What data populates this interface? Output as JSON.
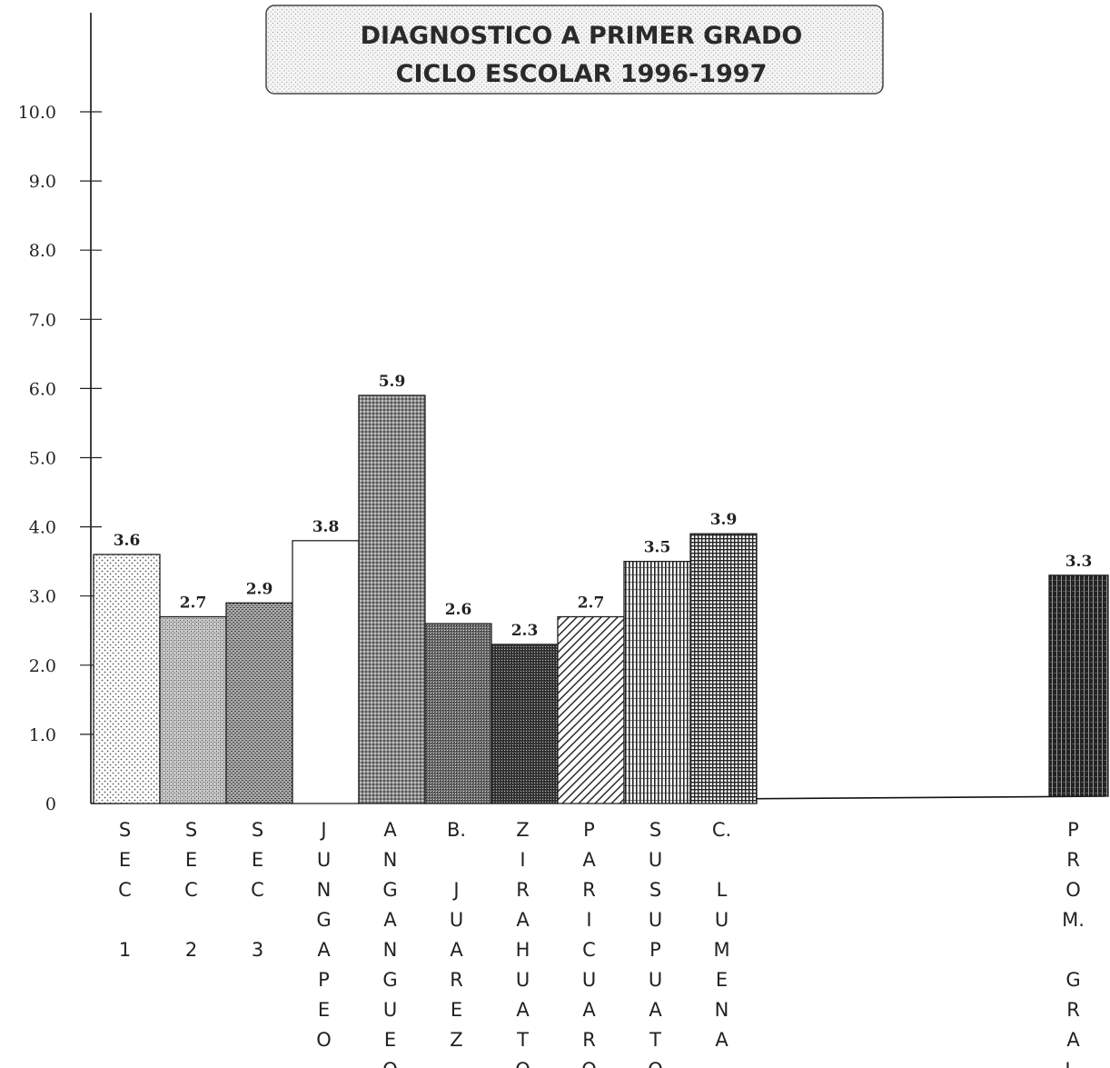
{
  "chart_data": {
    "type": "bar",
    "title": "DIAGNOSTICO A PRIMER GRADO",
    "subtitle": "CICLO ESCOLAR 1996-1997",
    "yticks": [
      "0",
      "1.0",
      "2.0",
      "3.0",
      "4.0",
      "5.0",
      "6.0",
      "7.0",
      "8.0",
      "9.0",
      "10.0"
    ],
    "ylim": [
      0,
      10
    ],
    "grid": false,
    "legend": "none",
    "categories": [
      "SEC 1",
      "SEC 2",
      "SEC 3",
      "JUNGAPEO",
      "ANGANGUEO",
      "B. JUAREZ",
      "ZIRAHUATO",
      "PARICUARO",
      "SUSUPUATO",
      "C. LUMENA",
      "PROM. GRAL."
    ],
    "category_label_lines": [
      [
        "S",
        "E",
        "C",
        "",
        "1"
      ],
      [
        "S",
        "E",
        "C",
        "",
        "2"
      ],
      [
        "S",
        "E",
        "C",
        "",
        "3"
      ],
      [
        "J",
        "U",
        "N",
        "G",
        "A",
        "P",
        "E",
        "O"
      ],
      [
        "A",
        "N",
        "G",
        "A",
        "N",
        "G",
        "U",
        "E",
        "O"
      ],
      [
        "B.",
        "",
        "J",
        "U",
        "A",
        "R",
        "E",
        "Z"
      ],
      [
        "Z",
        "I",
        "R",
        "A",
        "H",
        "U",
        "A",
        "T",
        "O"
      ],
      [
        "P",
        "A",
        "R",
        "I",
        "C",
        "U",
        "A",
        "R",
        "O"
      ],
      [
        "S",
        "U",
        "S",
        "U",
        "P",
        "U",
        "A",
        "T",
        "O"
      ],
      [
        "C.",
        "",
        "L",
        "U",
        "M",
        "E",
        "N",
        "A"
      ],
      [
        "P",
        "R",
        "O",
        "M.",
        "",
        "G",
        "R",
        "A",
        "L."
      ]
    ],
    "values": [
      3.6,
      2.7,
      2.9,
      3.8,
      5.9,
      2.6,
      2.3,
      2.7,
      3.5,
      3.9,
      3.3
    ],
    "value_labels": [
      "3.6",
      "2.7",
      "2.9",
      "3.8",
      "5.9",
      "2.6",
      "2.3",
      "2.7",
      "3.5",
      "3.9",
      "3.3"
    ],
    "patterns": [
      "dots",
      "fine-dense",
      "medium-dense",
      "none",
      "coarse-dense",
      "dark-dense",
      "darker-dense",
      "diagonal",
      "vertical",
      "grid",
      "dark-vertical"
    ]
  }
}
